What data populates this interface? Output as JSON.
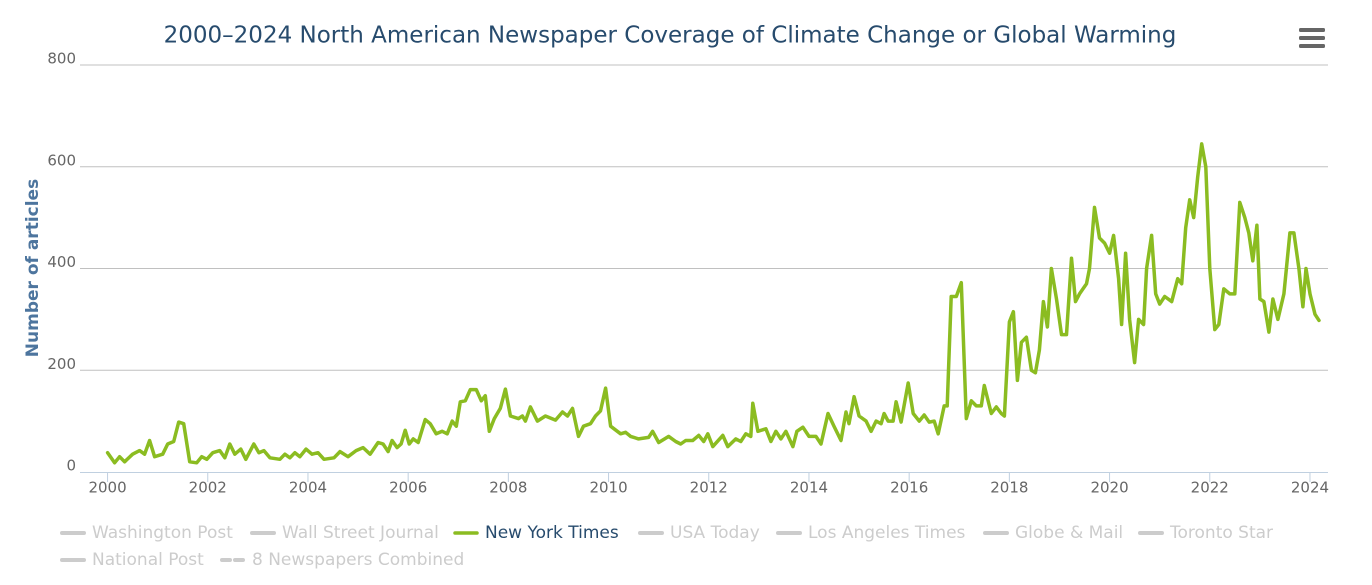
{
  "chart_data": {
    "type": "line",
    "title": "2000–2024 North American Newspaper Coverage of Climate Change or Global Warming",
    "y_label": "Number of articles",
    "xlim": [
      1999.45,
      2024.36
    ],
    "xticks": [
      2000,
      2002,
      2004,
      2006,
      2008,
      2010,
      2012,
      2014,
      2016,
      2018,
      2020,
      2022,
      2024
    ],
    "ylim": [
      0,
      800
    ],
    "yticks": [
      0,
      200,
      400,
      600,
      800
    ],
    "grid": true,
    "x": [
      2000.0,
      2000.14,
      2000.24,
      2000.34,
      2000.5,
      2000.64,
      2000.74,
      2000.84,
      2000.94,
      2001.1,
      2001.2,
      2001.32,
      2001.42,
      2001.52,
      2001.64,
      2001.78,
      2001.88,
      2001.98,
      2002.1,
      2002.24,
      2002.34,
      2002.44,
      2002.54,
      2002.66,
      2002.76,
      2002.92,
      2003.02,
      2003.12,
      2003.24,
      2003.44,
      2003.54,
      2003.64,
      2003.74,
      2003.84,
      2003.96,
      2004.08,
      2004.2,
      2004.32,
      2004.52,
      2004.64,
      2004.8,
      2004.96,
      2005.1,
      2005.24,
      2005.4,
      2005.5,
      2005.6,
      2005.68,
      2005.78,
      2005.86,
      2005.94,
      2006.02,
      2006.1,
      2006.2,
      2006.34,
      2006.44,
      2006.56,
      2006.68,
      2006.78,
      2006.88,
      2006.96,
      2007.04,
      2007.14,
      2007.24,
      2007.36,
      2007.46,
      2007.54,
      2007.62,
      2007.72,
      2007.84,
      2007.94,
      2008.04,
      2008.2,
      2008.28,
      2008.34,
      2008.44,
      2008.58,
      2008.74,
      2008.94,
      2009.08,
      2009.18,
      2009.28,
      2009.4,
      2009.5,
      2009.64,
      2009.74,
      2009.84,
      2009.94,
      2010.04,
      2010.24,
      2010.34,
      2010.44,
      2010.6,
      2010.8,
      2010.88,
      2011.0,
      2011.2,
      2011.34,
      2011.44,
      2011.54,
      2011.68,
      2011.8,
      2011.9,
      2011.98,
      2012.08,
      2012.28,
      2012.38,
      2012.54,
      2012.64,
      2012.74,
      2012.84,
      2012.88,
      2012.98,
      2013.14,
      2013.24,
      2013.34,
      2013.44,
      2013.54,
      2013.68,
      2013.76,
      2013.88,
      2014.0,
      2014.14,
      2014.24,
      2014.38,
      2014.5,
      2014.64,
      2014.74,
      2014.8,
      2014.9,
      2015.0,
      2015.14,
      2015.24,
      2015.34,
      2015.44,
      2015.5,
      2015.58,
      2015.68,
      2015.74,
      2015.84,
      2015.98,
      2016.08,
      2016.2,
      2016.3,
      2016.4,
      2016.5,
      2016.58,
      2016.7,
      2016.76,
      2016.84,
      2016.94,
      2017.04,
      2017.14,
      2017.24,
      2017.34,
      2017.44,
      2017.5,
      2017.64,
      2017.74,
      2017.84,
      2017.9,
      2018.0,
      2018.08,
      2018.16,
      2018.24,
      2018.34,
      2018.44,
      2018.52,
      2018.6,
      2018.68,
      2018.76,
      2018.84,
      2018.94,
      2019.04,
      2019.14,
      2019.24,
      2019.32,
      2019.4,
      2019.54,
      2019.6,
      2019.7,
      2019.8,
      2019.9,
      2020.0,
      2020.08,
      2020.18,
      2020.24,
      2020.32,
      2020.4,
      2020.5,
      2020.58,
      2020.68,
      2020.74,
      2020.84,
      2020.92,
      2021.0,
      2021.1,
      2021.24,
      2021.36,
      2021.44,
      2021.52,
      2021.6,
      2021.68,
      2021.76,
      2021.84,
      2021.92,
      2022.0,
      2022.1,
      2022.18,
      2022.28,
      2022.4,
      2022.5,
      2022.6,
      2022.7,
      2022.78,
      2022.86,
      2022.94,
      2023.0,
      2023.08,
      2023.18,
      2023.26,
      2023.36,
      2023.48,
      2023.6,
      2023.68,
      2023.78,
      2023.86,
      2023.92,
      2024.0,
      2024.1,
      2024.18
    ],
    "series": [
      {
        "name": "New York Times",
        "color": "#8bbc21",
        "values": [
          38,
          18,
          30,
          20,
          35,
          42,
          35,
          62,
          30,
          35,
          55,
          60,
          98,
          95,
          20,
          18,
          30,
          25,
          38,
          42,
          28,
          55,
          35,
          45,
          25,
          55,
          38,
          42,
          28,
          25,
          35,
          28,
          38,
          30,
          45,
          35,
          38,
          25,
          28,
          40,
          30,
          42,
          48,
          35,
          58,
          55,
          40,
          62,
          48,
          55,
          82,
          55,
          65,
          58,
          103,
          95,
          75,
          80,
          75,
          100,
          90,
          138,
          140,
          162,
          162,
          140,
          150,
          80,
          105,
          125,
          163,
          110,
          105,
          110,
          100,
          128,
          100,
          110,
          102,
          118,
          110,
          125,
          70,
          90,
          95,
          110,
          120,
          165,
          90,
          75,
          78,
          70,
          65,
          68,
          80,
          58,
          70,
          60,
          55,
          62,
          62,
          72,
          60,
          75,
          50,
          72,
          50,
          65,
          60,
          75,
          70,
          135,
          80,
          85,
          60,
          80,
          65,
          80,
          50,
          80,
          88,
          70,
          70,
          55,
          115,
          90,
          62,
          118,
          95,
          148,
          110,
          100,
          80,
          100,
          95,
          115,
          100,
          100,
          138,
          98,
          175,
          115,
          100,
          112,
          98,
          100,
          75,
          130,
          130,
          345,
          345,
          372,
          105,
          140,
          130,
          130,
          170,
          115,
          128,
          115,
          110,
          295,
          315,
          180,
          255,
          265,
          200,
          195,
          240,
          335,
          285,
          400,
          340,
          270,
          270,
          420,
          335,
          350,
          370,
          400,
          520,
          460,
          450,
          430,
          465,
          380,
          290,
          430,
          300,
          215,
          300,
          290,
          400,
          465,
          350,
          330,
          345,
          335,
          380,
          370,
          480,
          535,
          500,
          580,
          645,
          600,
          400,
          280,
          290,
          360,
          350,
          350,
          530,
          500,
          470,
          415,
          485,
          340,
          335,
          275,
          340,
          300,
          350,
          470,
          470,
          400,
          325,
          400,
          350,
          310,
          298
        ]
      }
    ],
    "hidden_series": [
      {
        "name": "Washington Post",
        "dash": false
      },
      {
        "name": "Wall Street Journal",
        "dash": false
      },
      {
        "name": "USA Today",
        "dash": false
      },
      {
        "name": "Los Angeles Times",
        "dash": false
      },
      {
        "name": "Globe & Mail",
        "dash": false
      },
      {
        "name": "Toronto Star",
        "dash": false
      },
      {
        "name": "National Post",
        "dash": false
      },
      {
        "name": "8 Newspapers Combined",
        "dash": true
      }
    ],
    "hidden_color": "#cccccc"
  }
}
